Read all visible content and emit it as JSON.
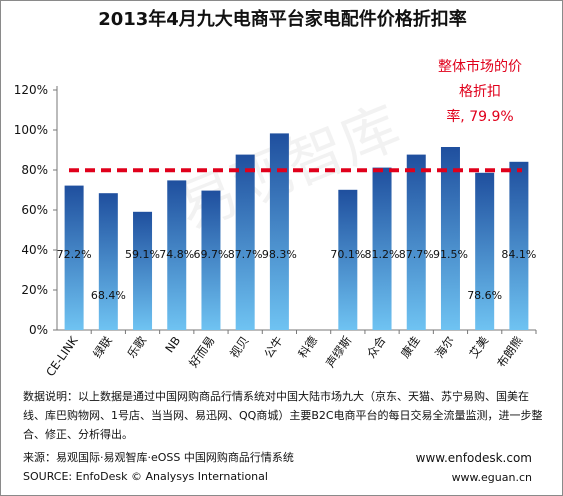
{
  "chart_data": {
    "type": "bar",
    "title": "2013年4月九大电商平台家电配件价格折扣率",
    "categories": [
      "CE-LINK",
      "绿联",
      "乐歌",
      "NB",
      "好而易",
      "视贝",
      "公牛",
      "科德",
      "声缪斯",
      "众合",
      "康佳",
      "海尔",
      "艾美",
      "布朗熊"
    ],
    "values": [
      72.2,
      68.4,
      59.1,
      74.8,
      69.7,
      87.7,
      98.3,
      null,
      70.1,
      81.2,
      87.7,
      91.5,
      78.6,
      84.1
    ],
    "value_labels": [
      "72.2%",
      "68.4%",
      "59.1%",
      "74.8%",
      "69.7%",
      "87.7%",
      "98.3%",
      "",
      "70.1%",
      "81.2%",
      "87.7%",
      "91.5%",
      "78.6%",
      "84.1%"
    ],
    "yticks": [
      "0%",
      "20%",
      "40%",
      "60%",
      "80%",
      "100%",
      "120%"
    ],
    "ylim": [
      0,
      120
    ],
    "reference_line": {
      "value": 79.9,
      "label_lines": [
        "整体市场的价",
        "格折扣",
        "率, 79.9%"
      ],
      "color": "#e0001b"
    },
    "bar_color_top": "#1f4f9e",
    "bar_color_bottom": "#6fc3f2",
    "grid": false,
    "xlabel": "",
    "ylabel": ""
  },
  "notes": {
    "description": "数据说明：以上数据是通过中国网购商品行情系统对中国大陆市场九大（京东、天猫、苏宁易购、国美在线、库巴购物网、1号店、当当网、易迅网、QQ商城）主要B2C电商平台的每日交易全流量监测，进一步整合、修正、分析得出。",
    "source_cn": "来源：易观国际·易观智库·eOSS 中国网购商品行情系统",
    "source_en": "SOURCE: EnfoDesk © Analysys International",
    "url1": "www.enfodesk.com",
    "url2": "www.eguan.cn"
  },
  "watermark": "易观智库"
}
